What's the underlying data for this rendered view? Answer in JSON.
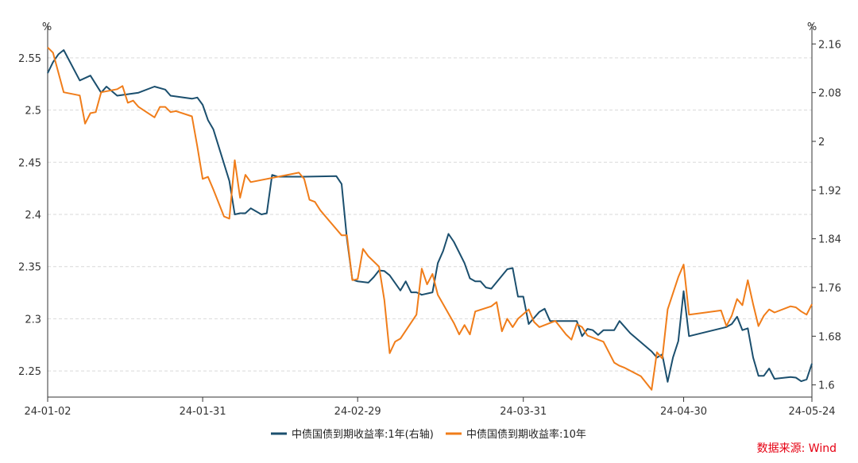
{
  "chart_data": {
    "type": "line",
    "left_axis_unit": "%",
    "right_axis_unit": "%",
    "left_ylim": [
      2.225,
      2.575
    ],
    "left_ticks": [
      "2.25",
      "2.3",
      "2.35",
      "2.4",
      "2.45",
      "2.5",
      "2.55"
    ],
    "right_ylim": [
      1.58,
      2.18
    ],
    "right_ticks": [
      "1.6",
      "1.68",
      "1.76",
      "1.84",
      "1.92",
      "2",
      "2.08",
      "2.16"
    ],
    "x_tick_labels": [
      "24-01-02",
      "24-01-31",
      "24-02-29",
      "24-03-31",
      "24-04-30",
      "24-05-24"
    ],
    "xlim": [
      "2024-01-02",
      "2024-05-24"
    ],
    "grid": "horizontal dashed",
    "legend_position": "bottom-center",
    "source": "数据来源: Wind",
    "series": [
      {
        "name": "中债国债到期收益率:1年(右轴)",
        "axis": "right",
        "color": "#1b4f6e",
        "points": [
          [
            "2024-01-02",
            2.112
          ],
          [
            "2024-01-03",
            2.13
          ],
          [
            "2024-01-04",
            2.143
          ],
          [
            "2024-01-05",
            2.15
          ],
          [
            "2024-01-08",
            2.1
          ],
          [
            "2024-01-10",
            2.108
          ],
          [
            "2024-01-12",
            2.08
          ],
          [
            "2024-01-13",
            2.09
          ],
          [
            "2024-01-15",
            2.075
          ],
          [
            "2024-01-19",
            2.08
          ],
          [
            "2024-01-22",
            2.09
          ],
          [
            "2024-01-24",
            2.085
          ],
          [
            "2024-01-25",
            2.075
          ],
          [
            "2024-01-29",
            2.07
          ],
          [
            "2024-01-30",
            2.072
          ],
          [
            "2024-01-31",
            2.06
          ],
          [
            "2024-02-01",
            2.035
          ],
          [
            "2024-02-02",
            2.02
          ],
          [
            "2024-02-05",
            1.935
          ],
          [
            "2024-02-06",
            1.88
          ],
          [
            "2024-02-07",
            1.882
          ],
          [
            "2024-02-08",
            1.882
          ],
          [
            "2024-02-09",
            1.89
          ],
          [
            "2024-02-11",
            1.88
          ],
          [
            "2024-02-12",
            1.882
          ],
          [
            "2024-02-13",
            1.945
          ],
          [
            "2024-02-14",
            1.942
          ],
          [
            "2024-02-19",
            1.942
          ],
          [
            "2024-02-25",
            1.943
          ],
          [
            "2024-02-26",
            1.93
          ],
          [
            "2024-02-27",
            1.84
          ],
          [
            "2024-02-28",
            1.773
          ],
          [
            "2024-02-29",
            1.77
          ],
          [
            "2024-03-02",
            1.768
          ],
          [
            "2024-03-03",
            1.777
          ],
          [
            "2024-03-04",
            1.788
          ],
          [
            "2024-03-05",
            1.787
          ],
          [
            "2024-03-06",
            1.78
          ],
          [
            "2024-03-08",
            1.755
          ],
          [
            "2024-03-09",
            1.77
          ],
          [
            "2024-03-10",
            1.752
          ],
          [
            "2024-03-11",
            1.752
          ],
          [
            "2024-03-12",
            1.748
          ],
          [
            "2024-03-14",
            1.752
          ],
          [
            "2024-03-15",
            1.8
          ],
          [
            "2024-03-16",
            1.82
          ],
          [
            "2024-03-17",
            1.848
          ],
          [
            "2024-03-18",
            1.835
          ],
          [
            "2024-03-20",
            1.8
          ],
          [
            "2024-03-21",
            1.775
          ],
          [
            "2024-03-22",
            1.77
          ],
          [
            "2024-03-23",
            1.77
          ],
          [
            "2024-03-24",
            1.76
          ],
          [
            "2024-03-25",
            1.758
          ],
          [
            "2024-03-28",
            1.79
          ],
          [
            "2024-03-29",
            1.792
          ],
          [
            "2024-03-30",
            1.745
          ],
          [
            "2024-03-31",
            1.745
          ],
          [
            "2024-04-01",
            1.7
          ],
          [
            "2024-04-03",
            1.72
          ],
          [
            "2024-04-04",
            1.725
          ],
          [
            "2024-04-05",
            1.705
          ],
          [
            "2024-04-10",
            1.705
          ],
          [
            "2024-04-11",
            1.68
          ],
          [
            "2024-04-12",
            1.692
          ],
          [
            "2024-04-13",
            1.69
          ],
          [
            "2024-04-14",
            1.682
          ],
          [
            "2024-04-15",
            1.69
          ],
          [
            "2024-04-17",
            1.69
          ],
          [
            "2024-04-18",
            1.705
          ],
          [
            "2024-04-19",
            1.695
          ],
          [
            "2024-04-20",
            1.685
          ],
          [
            "2024-04-24",
            1.655
          ],
          [
            "2024-04-25",
            1.645
          ],
          [
            "2024-04-26",
            1.65
          ],
          [
            "2024-04-27",
            1.605
          ],
          [
            "2024-04-28",
            1.645
          ],
          [
            "2024-04-29",
            1.672
          ],
          [
            "2024-04-30",
            1.754
          ],
          [
            "2024-05-01",
            1.68
          ],
          [
            "2024-05-08",
            1.695
          ],
          [
            "2024-05-09",
            1.7
          ],
          [
            "2024-05-10",
            1.712
          ],
          [
            "2024-05-11",
            1.69
          ],
          [
            "2024-05-12",
            1.693
          ],
          [
            "2024-05-13",
            1.645
          ],
          [
            "2024-05-14",
            1.615
          ],
          [
            "2024-05-15",
            1.615
          ],
          [
            "2024-05-16",
            1.627
          ],
          [
            "2024-05-17",
            1.61
          ],
          [
            "2024-05-20",
            1.613
          ],
          [
            "2024-05-21",
            1.612
          ],
          [
            "2024-05-22",
            1.606
          ],
          [
            "2024-05-23",
            1.609
          ],
          [
            "2024-05-24",
            1.635
          ]
        ]
      },
      {
        "name": "中债国债到期收益率:10年",
        "axis": "left",
        "color": "#f07d1a",
        "points": [
          [
            "2024-01-02",
            2.56
          ],
          [
            "2024-01-03",
            2.555
          ],
          [
            "2024-01-05",
            2.517
          ],
          [
            "2024-01-08",
            2.514
          ],
          [
            "2024-01-09",
            2.487
          ],
          [
            "2024-01-10",
            2.497
          ],
          [
            "2024-01-11",
            2.498
          ],
          [
            "2024-01-12",
            2.517
          ],
          [
            "2024-01-15",
            2.52
          ],
          [
            "2024-01-16",
            2.523
          ],
          [
            "2024-01-17",
            2.507
          ],
          [
            "2024-01-18",
            2.509
          ],
          [
            "2024-01-19",
            2.503
          ],
          [
            "2024-01-22",
            2.493
          ],
          [
            "2024-01-23",
            2.503
          ],
          [
            "2024-01-24",
            2.503
          ],
          [
            "2024-01-25",
            2.498
          ],
          [
            "2024-01-26",
            2.499
          ],
          [
            "2024-01-29",
            2.494
          ],
          [
            "2024-01-30",
            2.465
          ],
          [
            "2024-01-31",
            2.434
          ],
          [
            "2024-02-01",
            2.436
          ],
          [
            "2024-02-02",
            2.424
          ],
          [
            "2024-02-04",
            2.398
          ],
          [
            "2024-02-05",
            2.396
          ],
          [
            "2024-02-06",
            2.452
          ],
          [
            "2024-02-07",
            2.416
          ],
          [
            "2024-02-08",
            2.438
          ],
          [
            "2024-02-09",
            2.431
          ],
          [
            "2024-02-18",
            2.44
          ],
          [
            "2024-02-19",
            2.434
          ],
          [
            "2024-02-20",
            2.414
          ],
          [
            "2024-02-21",
            2.412
          ],
          [
            "2024-02-22",
            2.404
          ],
          [
            "2024-02-23",
            2.398
          ],
          [
            "2024-02-26",
            2.38
          ],
          [
            "2024-02-27",
            2.38
          ],
          [
            "2024-02-28",
            2.337
          ],
          [
            "2024-02-29",
            2.338
          ],
          [
            "2024-03-01",
            2.367
          ],
          [
            "2024-03-02",
            2.36
          ],
          [
            "2024-03-04",
            2.35
          ],
          [
            "2024-03-05",
            2.318
          ],
          [
            "2024-03-06",
            2.267
          ],
          [
            "2024-03-07",
            2.278
          ],
          [
            "2024-03-08",
            2.281
          ],
          [
            "2024-03-11",
            2.304
          ],
          [
            "2024-03-12",
            2.348
          ],
          [
            "2024-03-13",
            2.333
          ],
          [
            "2024-03-14",
            2.343
          ],
          [
            "2024-03-15",
            2.323
          ],
          [
            "2024-03-18",
            2.296
          ],
          [
            "2024-03-19",
            2.285
          ],
          [
            "2024-03-20",
            2.294
          ],
          [
            "2024-03-21",
            2.285
          ],
          [
            "2024-03-22",
            2.307
          ],
          [
            "2024-03-25",
            2.312
          ],
          [
            "2024-03-26",
            2.316
          ],
          [
            "2024-03-27",
            2.288
          ],
          [
            "2024-03-28",
            2.3
          ],
          [
            "2024-03-29",
            2.292
          ],
          [
            "2024-03-30",
            2.3
          ],
          [
            "2024-04-01",
            2.309
          ],
          [
            "2024-04-02",
            2.297
          ],
          [
            "2024-04-03",
            2.292
          ],
          [
            "2024-04-06",
            2.298
          ],
          [
            "2024-04-08",
            2.285
          ],
          [
            "2024-04-09",
            2.28
          ],
          [
            "2024-04-10",
            2.295
          ],
          [
            "2024-04-11",
            2.292
          ],
          [
            "2024-04-12",
            2.284
          ],
          [
            "2024-04-15",
            2.278
          ],
          [
            "2024-04-17",
            2.258
          ],
          [
            "2024-04-18",
            2.255
          ],
          [
            "2024-04-19",
            2.253
          ],
          [
            "2024-04-22",
            2.245
          ],
          [
            "2024-04-24",
            2.232
          ],
          [
            "2024-04-25",
            2.268
          ],
          [
            "2024-04-26",
            2.262
          ],
          [
            "2024-04-27",
            2.309
          ],
          [
            "2024-04-29",
            2.34
          ],
          [
            "2024-04-30",
            2.352
          ],
          [
            "2024-05-01",
            2.304
          ],
          [
            "2024-05-07",
            2.308
          ],
          [
            "2024-05-08",
            2.293
          ],
          [
            "2024-05-09",
            2.303
          ],
          [
            "2024-05-10",
            2.319
          ],
          [
            "2024-05-11",
            2.313
          ],
          [
            "2024-05-12",
            2.337
          ],
          [
            "2024-05-13",
            2.314
          ],
          [
            "2024-05-14",
            2.293
          ],
          [
            "2024-05-15",
            2.303
          ],
          [
            "2024-05-16",
            2.309
          ],
          [
            "2024-05-17",
            2.306
          ],
          [
            "2024-05-20",
            2.312
          ],
          [
            "2024-05-21",
            2.311
          ],
          [
            "2024-05-22",
            2.307
          ],
          [
            "2024-05-23",
            2.304
          ],
          [
            "2024-05-24",
            2.314
          ]
        ]
      }
    ]
  }
}
